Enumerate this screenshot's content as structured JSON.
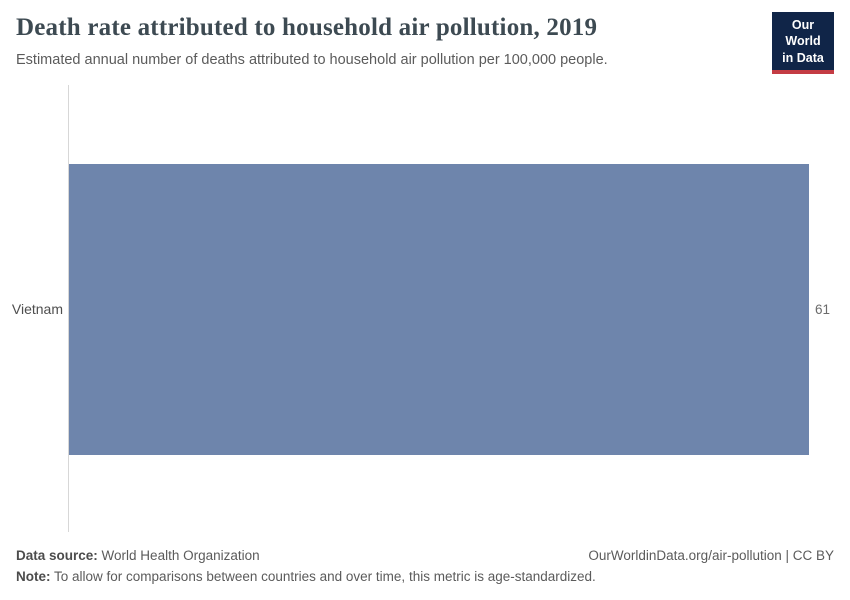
{
  "header": {
    "title": "Death rate attributed to household air pollution, 2019",
    "subtitle": "Estimated annual number of deaths attributed to household air pollution per 100,000 people.",
    "logo": {
      "line1": "Our World",
      "line2": "in Data",
      "bg_color": "#102548",
      "accent_color": "#c43c44"
    }
  },
  "chart_data": {
    "type": "bar",
    "orientation": "horizontal",
    "title": "Death rate attributed to household air pollution, 2019",
    "subtitle": "Estimated annual number of deaths attributed to household air pollution per 100,000 people.",
    "categories": [
      "Vietnam"
    ],
    "values": [
      61
    ],
    "value_labels": [
      "61"
    ],
    "xlabel": "",
    "ylabel": "",
    "xlim": [
      0,
      61
    ],
    "grid": false,
    "legend": "none",
    "bar_color": "#6e85ac",
    "axis_line_color": "#d7d7d7"
  },
  "footer": {
    "data_source_label": "Data source:",
    "data_source_value": "World Health Organization",
    "note_label": "Note:",
    "note_value": "To allow for comparisons between countries and over time, this metric is age-standardized.",
    "link": "OurWorldinData.org/air-pollution | CC BY"
  }
}
